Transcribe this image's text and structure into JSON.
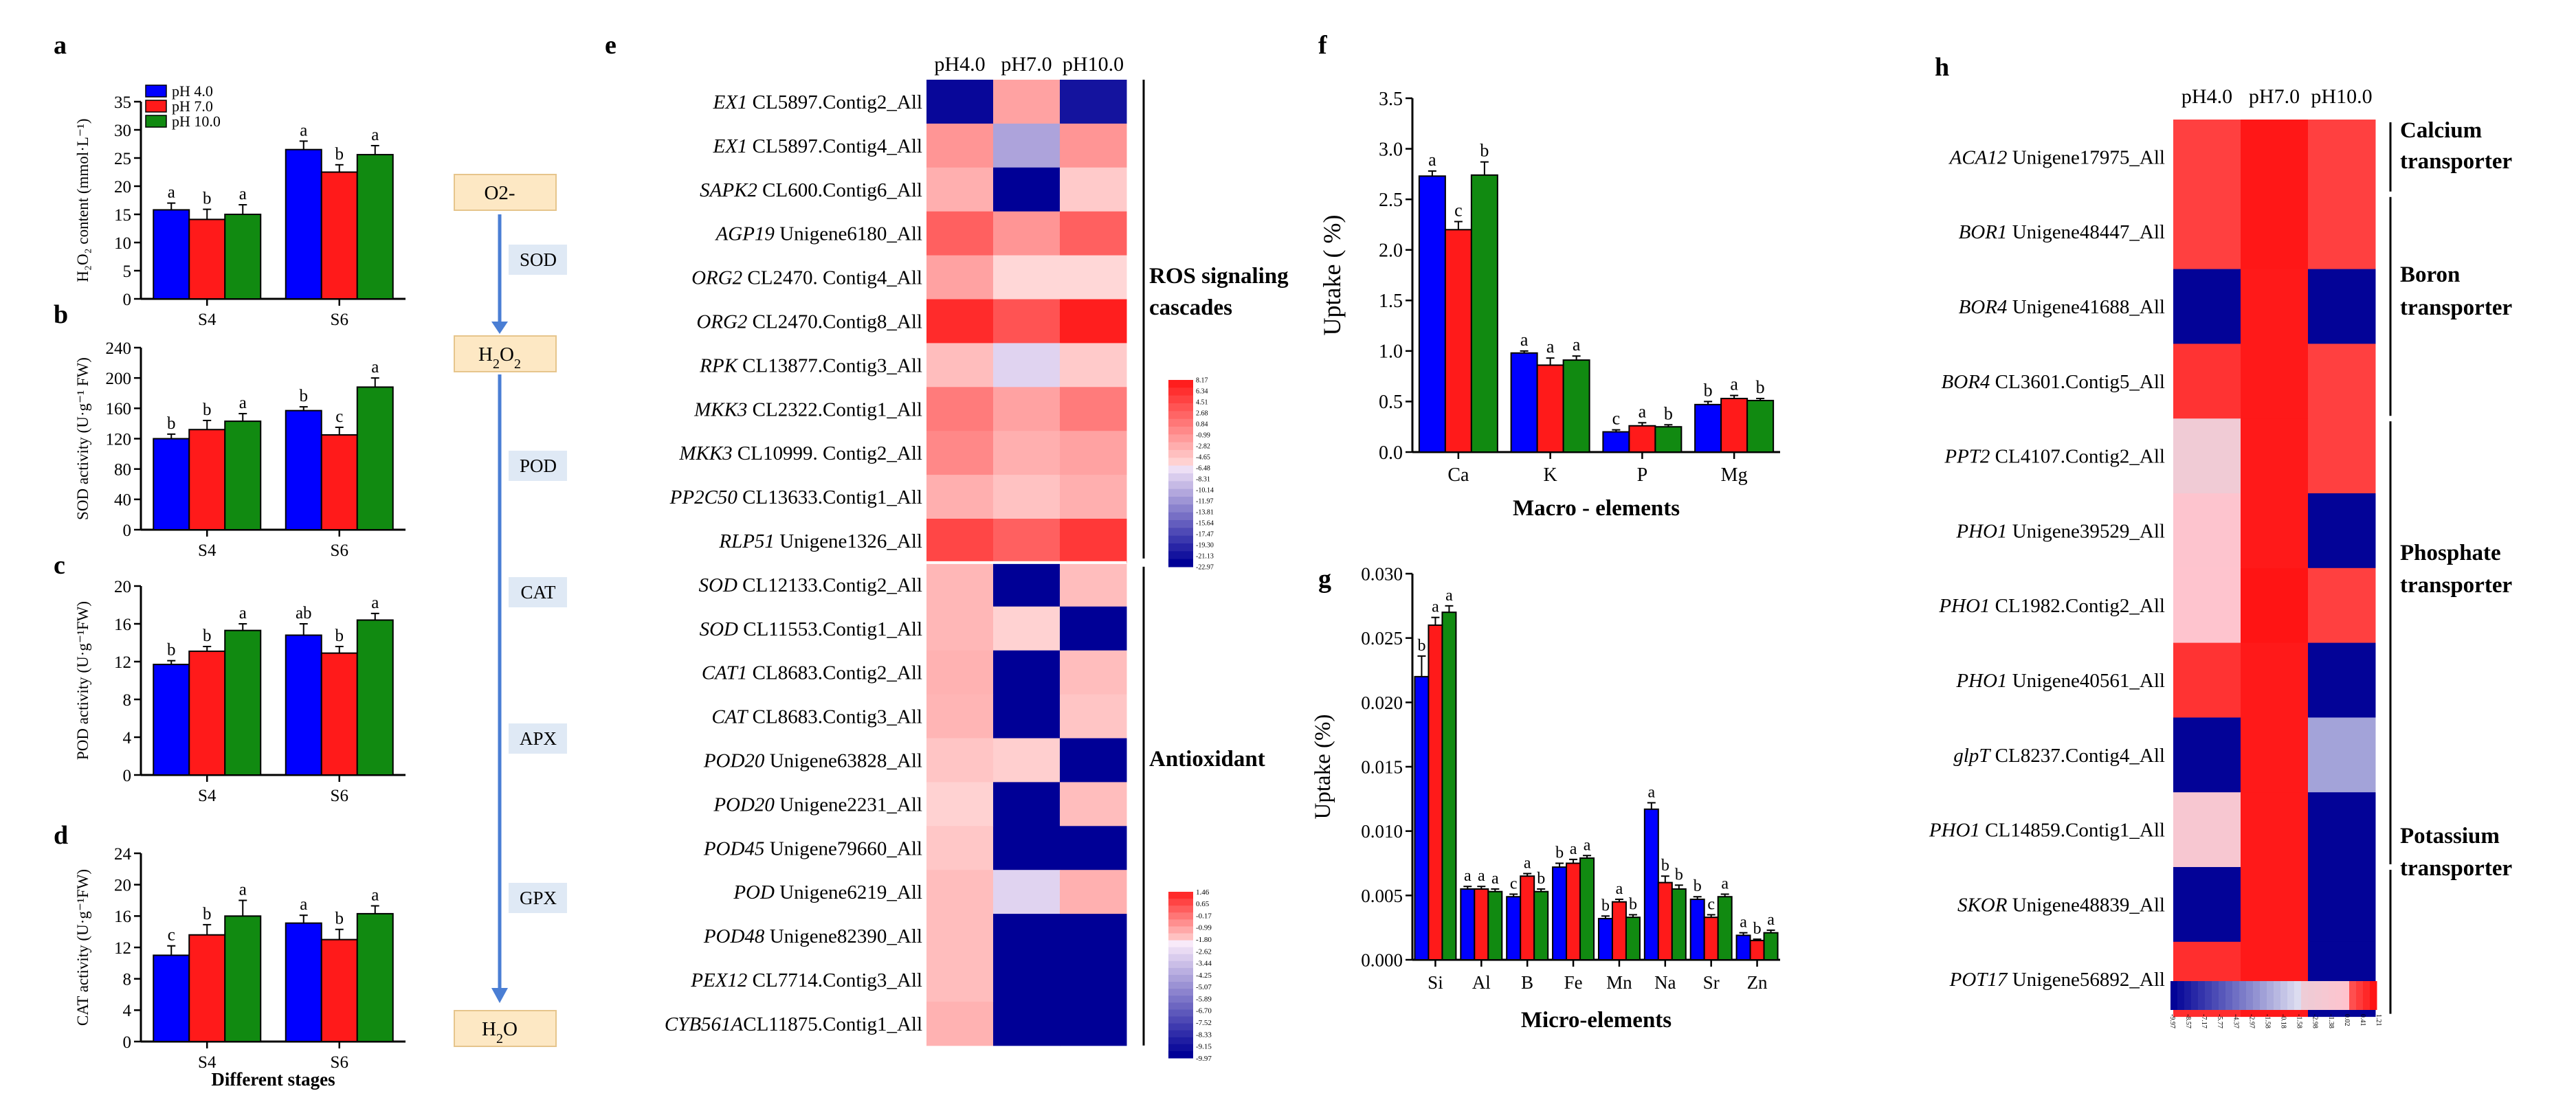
{
  "colors": {
    "pH4": "#0000ff",
    "pH7": "#ff1a1a",
    "pH10": "#118a11",
    "flow_box": "#fde8c4",
    "flow_label_bg": "#dfe9f5",
    "arrow": "#4a7ed4"
  },
  "legend": [
    "pH 4.0",
    "pH 7.0",
    "pH 10.0"
  ],
  "stage_labels": [
    "S4",
    "S6"
  ],
  "chart_data": [
    {
      "panel": "a",
      "type": "bar",
      "ylabel": "H₂O₂ content (mmol·L⁻¹)",
      "categories": [
        "S4",
        "S6"
      ],
      "ylim": [
        0,
        35
      ],
      "yticks": [
        "0",
        "5",
        "10",
        "15",
        "20",
        "25",
        "30",
        "35"
      ],
      "series": [
        {
          "name": "pH 4.0",
          "values": [
            15.8,
            26.5
          ],
          "errors": [
            1.2,
            1.5
          ],
          "letters": [
            "a",
            "a"
          ]
        },
        {
          "name": "pH 7.0",
          "values": [
            14.1,
            22.5
          ],
          "errors": [
            1.8,
            1.3
          ],
          "letters": [
            "b",
            "b"
          ]
        },
        {
          "name": "pH 10.0",
          "values": [
            15.0,
            25.6
          ],
          "errors": [
            1.7,
            1.6
          ],
          "letters": [
            "a",
            "a"
          ]
        }
      ]
    },
    {
      "panel": "b",
      "type": "bar",
      "ylabel": "SOD activity (U·g⁻¹ FW)",
      "categories": [
        "S4",
        "S6"
      ],
      "ylim": [
        0,
        240
      ],
      "yticks": [
        "0",
        "40",
        "80",
        "120",
        "160",
        "200",
        "240"
      ],
      "series": [
        {
          "name": "pH 4.0",
          "values": [
            120,
            157
          ],
          "errors": [
            6,
            5
          ],
          "letters": [
            "b",
            "b"
          ]
        },
        {
          "name": "pH 7.0",
          "values": [
            132,
            125
          ],
          "errors": [
            12,
            10
          ],
          "letters": [
            "b",
            "c"
          ]
        },
        {
          "name": "pH 10.0",
          "values": [
            143,
            188
          ],
          "errors": [
            10,
            12
          ],
          "letters": [
            "a",
            "a"
          ]
        }
      ]
    },
    {
      "panel": "c",
      "type": "bar",
      "ylabel": "POD activity (U·g⁻¹FW)",
      "categories": [
        "S4",
        "S6"
      ],
      "ylim": [
        0,
        20
      ],
      "yticks": [
        "0",
        "4",
        "8",
        "12",
        "16",
        "20"
      ],
      "series": [
        {
          "name": "pH 4.0",
          "values": [
            11.7,
            14.8
          ],
          "errors": [
            0.4,
            1.2
          ],
          "letters": [
            "b",
            "ab"
          ]
        },
        {
          "name": "pH 7.0",
          "values": [
            13.1,
            12.9
          ],
          "errors": [
            0.5,
            0.7
          ],
          "letters": [
            "b",
            "b"
          ]
        },
        {
          "name": "pH 10.0",
          "values": [
            15.3,
            16.4
          ],
          "errors": [
            0.7,
            0.7
          ],
          "letters": [
            "a",
            "a"
          ]
        }
      ]
    },
    {
      "panel": "d",
      "type": "bar",
      "ylabel": "CAT activity (U·g⁻¹FW)",
      "xlabel": "Different stages",
      "categories": [
        "S4",
        "S6"
      ],
      "ylim": [
        0,
        24
      ],
      "yticks": [
        "0",
        "4",
        "8",
        "12",
        "16",
        "20",
        "24"
      ],
      "series": [
        {
          "name": "pH 4.0",
          "values": [
            11.0,
            15.1
          ],
          "errors": [
            1.2,
            1.0
          ],
          "letters": [
            "c",
            "a"
          ]
        },
        {
          "name": "pH 7.0",
          "values": [
            13.6,
            13.0
          ],
          "errors": [
            1.3,
            1.3
          ],
          "letters": [
            "b",
            "b"
          ]
        },
        {
          "name": "pH 10.0",
          "values": [
            16.0,
            16.3
          ],
          "errors": [
            2.0,
            1.0
          ],
          "letters": [
            "a",
            "a"
          ]
        }
      ]
    },
    {
      "panel": "f",
      "type": "bar",
      "ylabel": "Uptake ( %)",
      "xlabel": "Macro - elements",
      "categories": [
        "Ca",
        "K",
        "P",
        "Mg"
      ],
      "ylim": [
        0,
        3.5
      ],
      "yticks": [
        "0.0",
        "0.5",
        "1.0",
        "1.5",
        "2.0",
        "2.5",
        "3.0",
        "3.5"
      ],
      "series": [
        {
          "name": "pH 4.0",
          "values": [
            2.73,
            0.98,
            0.2,
            0.47
          ],
          "errors": [
            0.05,
            0.02,
            0.02,
            0.03
          ],
          "letters": [
            "a",
            "a",
            "c",
            "b"
          ]
        },
        {
          "name": "pH 7.0",
          "values": [
            2.2,
            0.86,
            0.26,
            0.53
          ],
          "errors": [
            0.08,
            0.07,
            0.03,
            0.03
          ],
          "letters": [
            "c",
            "a",
            "a",
            "a"
          ]
        },
        {
          "name": "pH 10.0",
          "values": [
            2.74,
            0.91,
            0.25,
            0.51
          ],
          "errors": [
            0.13,
            0.04,
            0.02,
            0.02
          ],
          "letters": [
            "b",
            "a",
            "b",
            "b"
          ]
        }
      ]
    },
    {
      "panel": "g",
      "type": "bar",
      "ylabel": "Uptake (%)",
      "xlabel": "Micro-elements",
      "categories": [
        "Si",
        "Al",
        "B",
        "Fe",
        "Mn",
        "Na",
        "Sr",
        "Zn"
      ],
      "ylim": [
        0,
        0.03
      ],
      "yticks": [
        "0.000",
        "0.005",
        "0.010",
        "0.015",
        "0.020",
        "0.025",
        "0.030"
      ],
      "series": [
        {
          "name": "pH 4.0",
          "values": [
            0.022,
            0.0055,
            0.0049,
            0.0072,
            0.0032,
            0.0117,
            0.0047,
            0.0019
          ],
          "errors": [
            0.0016,
            0.0002,
            0.0002,
            0.0003,
            0.0002,
            0.0005,
            0.0002,
            0.0002
          ],
          "letters": [
            "b",
            "a",
            "c",
            "b",
            "b",
            "a",
            "b",
            "a"
          ]
        },
        {
          "name": "pH 7.0",
          "values": [
            0.026,
            0.0055,
            0.0065,
            0.0075,
            0.0045,
            0.006,
            0.0033,
            0.0015
          ],
          "errors": [
            0.0006,
            0.0002,
            0.0002,
            0.0003,
            0.0002,
            0.0005,
            0.0002,
            0.0001
          ],
          "letters": [
            "a",
            "a",
            "a",
            "a",
            "a",
            "b",
            "c",
            "b"
          ]
        },
        {
          "name": "pH 10.0",
          "values": [
            0.027,
            0.0053,
            0.0053,
            0.0079,
            0.0033,
            0.0055,
            0.0049,
            0.0021
          ],
          "errors": [
            0.0005,
            0.0002,
            0.0002,
            0.0002,
            0.0002,
            0.0003,
            0.0002,
            0.0002
          ],
          "letters": [
            "a",
            "a",
            "b",
            "a",
            "b",
            "b",
            "a",
            "a"
          ]
        }
      ]
    },
    {
      "panel": "e",
      "type": "heatmap",
      "columns": [
        "pH4.0",
        "pH7.0",
        "pH10.0"
      ],
      "rows": [
        {
          "gene": "EX1",
          "id": " CL5897.Contig2_All",
          "values": [
            -9.5,
            2.0,
            -9.0
          ]
        },
        {
          "gene": "EX1",
          "id": " CL5897.Contig4_All",
          "values": [
            2.5,
            -3.0,
            2.5
          ]
        },
        {
          "gene": "SAPK2",
          "id": " CL600.Contig6_All",
          "values": [
            1.5,
            -9.8,
            0.5
          ]
        },
        {
          "gene": "AGP19",
          "id": " Unigene6180_All",
          "values": [
            4.5,
            2.5,
            4.5
          ]
        },
        {
          "gene": "ORG2",
          "id": " CL2470. Contig4_All",
          "values": [
            2.0,
            0.0,
            0.0
          ]
        },
        {
          "gene": "ORG2",
          "id": " CL2470.Contig8_All",
          "values": [
            6.5,
            5.0,
            7.0
          ]
        },
        {
          "gene": "RPK",
          "id": " CL13877.Contig3_All",
          "values": [
            1.0,
            -1.0,
            0.5
          ]
        },
        {
          "gene": "MKK3",
          "id": " CL2322.Contig1_All",
          "values": [
            3.5,
            2.0,
            3.5
          ]
        },
        {
          "gene": "MKK3",
          "id": " CL10999. Contig2_All",
          "values": [
            3.0,
            1.5,
            2.0
          ]
        },
        {
          "gene": "PP2C50",
          "id": " CL13633.Contig1_All",
          "values": [
            1.5,
            0.8,
            1.5
          ]
        },
        {
          "gene": "RLP51",
          "id": " Unigene1326_All",
          "values": [
            5.5,
            4.5,
            6.0
          ]
        },
        {
          "gene": "SOD",
          "id": " CL12133.Contig2_All",
          "values": [
            1.2,
            -9.9,
            1.0
          ]
        },
        {
          "gene": "SOD",
          "id": " CL11553.Contig1_All",
          "values": [
            1.2,
            0.2,
            -9.9
          ]
        },
        {
          "gene": "CAT1",
          "id": " CL8683.Contig2_All",
          "values": [
            1.4,
            -9.9,
            1.0
          ]
        },
        {
          "gene": "CAT",
          "id": " CL8683.Contig3_All",
          "values": [
            1.3,
            -9.9,
            0.7
          ]
        },
        {
          "gene": "POD20",
          "id": " Unigene63828_All",
          "values": [
            0.7,
            0.3,
            -9.9
          ]
        },
        {
          "gene": "POD20",
          "id": " Unigene2231_All",
          "values": [
            0.2,
            -9.9,
            1.0
          ]
        },
        {
          "gene": "POD45",
          "id": " Unigene79660_All",
          "values": [
            0.6,
            -9.9,
            -9.9
          ]
        },
        {
          "gene": "POD",
          "id": " Unigene6219_All",
          "values": [
            1.0,
            -1.0,
            1.46
          ]
        },
        {
          "gene": "POD48",
          "id": " Unigene82390_All",
          "values": [
            1.0,
            -9.9,
            -9.9
          ]
        },
        {
          "gene": "PEX12",
          "id": " CL7714.Contig3_All",
          "values": [
            1.0,
            -9.9,
            -9.9
          ]
        },
        {
          "gene": "CYB561A",
          "id": "CL11875.Contig1_All",
          "values": [
            1.4,
            -9.9,
            -9.9
          ]
        }
      ],
      "groups": [
        {
          "label_lines": [
            "ROS signaling",
            "cascades"
          ]
        },
        {
          "label_lines": [
            "Antioxidant"
          ]
        }
      ],
      "legend_top": {
        "ticks": [
          "8.17",
          "6.34",
          "4.51",
          "2.68",
          "0.84",
          "-0.99",
          "-2.82",
          "-4.65",
          "-6.48",
          "-8.31",
          "-10.14",
          "-11.97",
          "-13.81",
          "-15.64",
          "-17.47",
          "-19.30",
          "-21.13",
          "-22.97"
        ]
      },
      "legend_bottom": {
        "ticks": [
          "1.46",
          "0.65",
          "-0.17",
          "-0.99",
          "-1.80",
          "-2.62",
          "-3.44",
          "-4.25",
          "-5.07",
          "-5.89",
          "-6.70",
          "-7.52",
          "-8.33",
          "-9.15",
          "-9.97"
        ]
      }
    },
    {
      "panel": "h",
      "type": "heatmap",
      "columns": [
        "pH4.0",
        "pH7.0",
        "pH10.0"
      ],
      "rows": [
        {
          "gene": "ACA12",
          "id": " Unigene17975_All",
          "values": [
            0.35,
            1.15,
            0.35
          ]
        },
        {
          "gene": "BOR1",
          "id": " Unigene48447_All",
          "values": [
            0.35,
            1.15,
            0.35
          ]
        },
        {
          "gene": "BOR4",
          "id": " Unigene41688_All",
          "values": [
            -9.9,
            1.1,
            -9.9
          ]
        },
        {
          "gene": "BOR4",
          "id": " CL3601.Contig5_All",
          "values": [
            0.6,
            1.1,
            0.35
          ]
        },
        {
          "gene": "PPT2",
          "id": " CL4107.Contig2_All",
          "values": [
            -2.3,
            1.1,
            0.35
          ]
        },
        {
          "gene": "PHO1",
          "id": " Unigene39529_All",
          "values": [
            -0.5,
            1.1,
            -9.9
          ]
        },
        {
          "gene": "PHO1",
          "id": " CL1982.Contig2_All",
          "values": [
            -0.4,
            1.21,
            0.35
          ]
        },
        {
          "gene": "PHO1",
          "id": " Unigene40561_All",
          "values": [
            0.6,
            1.1,
            -9.9
          ]
        },
        {
          "gene": "glpT",
          "id": " CL8237.Contig4_All",
          "values": [
            -9.9,
            1.1,
            -4.8
          ]
        },
        {
          "gene": "PHO1",
          "id": " CL14859.Contig1_All",
          "values": [
            -1.3,
            1.1,
            -9.9
          ]
        },
        {
          "gene": "SKOR",
          "id": " Unigene48839_All",
          "values": [
            -9.9,
            1.1,
            -9.9
          ]
        },
        {
          "gene": "POT17",
          "id": " Unigene56892_All",
          "values": [
            0.7,
            1.1,
            -9.9
          ]
        }
      ],
      "groups": [
        {
          "label_lines": [
            "Calcium",
            "transporter"
          ]
        },
        {
          "label_lines": [
            "Boron",
            "transporter"
          ]
        },
        {
          "label_lines": [
            "Phosphate",
            "transporter"
          ]
        },
        {
          "label_lines": [
            "Potassium",
            "transporter"
          ]
        }
      ],
      "legend": {
        "ticks": [
          "-9.97",
          "-8.57",
          "-7.17",
          "-5.77",
          "-4.37",
          "-2.97",
          "-1.58",
          "-0.18",
          "-1.58",
          "-2.98",
          "-1.38",
          "0.02",
          "0.41",
          "1.21"
        ]
      }
    }
  ],
  "pathway": {
    "nodes": [
      "O2-",
      "H2O2",
      "H2O"
    ],
    "enzymes": [
      "SOD",
      "POD",
      "CAT",
      "APX",
      "GPX"
    ]
  },
  "panel_letters": [
    "a",
    "b",
    "c",
    "d",
    "e",
    "f",
    "g",
    "h"
  ]
}
